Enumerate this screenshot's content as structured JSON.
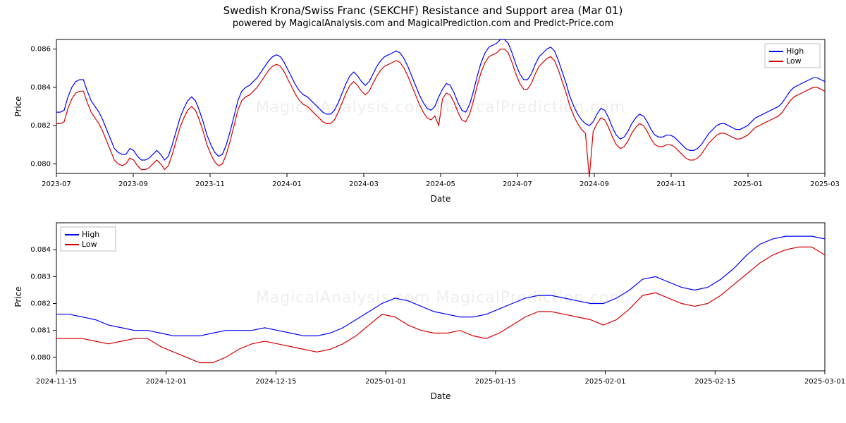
{
  "title": "Swedish Krona/Swiss Franc (SEKCHF) Resistance and Support area (Mar 01)",
  "subtitle": "powered by MagicalAnalysis.com and MagicalPrediction.com and Predict-Price.com",
  "watermark_text": "MagicalAnalysis.com          MagicalPrediction.com",
  "colors": {
    "high": "#0000ff",
    "low": "#d60000",
    "axis": "#000000",
    "background": "#ffffff",
    "legend_border": "#bfbfbf"
  },
  "legend": {
    "high": "High",
    "low": "Low"
  },
  "top_chart": {
    "type": "line",
    "x_label": "Date",
    "y_label": "Price",
    "label_fontsize": 12,
    "tick_fontsize": 10,
    "line_width": 1.2,
    "ylim": [
      0.0795,
      0.0865
    ],
    "yticks": [
      0.08,
      0.082,
      0.084,
      0.086
    ],
    "ytick_labels": [
      "0.080",
      "0.082",
      "0.084",
      "0.086"
    ],
    "xtick_labels": [
      "2023-07",
      "2023-09",
      "2023-11",
      "2024-01",
      "2024-03",
      "2024-05",
      "2024-07",
      "2024-09",
      "2024-11",
      "2025-01",
      "2025-03"
    ],
    "n_points": 200,
    "high": [
      0.0827,
      0.0827,
      0.0828,
      0.0835,
      0.084,
      0.0843,
      0.0844,
      0.0844,
      0.0838,
      0.0833,
      0.083,
      0.0827,
      0.0823,
      0.0818,
      0.0813,
      0.0808,
      0.0806,
      0.0805,
      0.0805,
      0.0808,
      0.0807,
      0.0804,
      0.0802,
      0.0802,
      0.0803,
      0.0805,
      0.0807,
      0.0805,
      0.0802,
      0.0804,
      0.081,
      0.0817,
      0.0824,
      0.0829,
      0.0833,
      0.0835,
      0.0833,
      0.0828,
      0.0822,
      0.0815,
      0.081,
      0.0806,
      0.0804,
      0.0805,
      0.081,
      0.0817,
      0.0825,
      0.0833,
      0.0838,
      0.084,
      0.0841,
      0.0843,
      0.0845,
      0.0848,
      0.0851,
      0.0854,
      0.0856,
      0.0857,
      0.0856,
      0.0853,
      0.0849,
      0.0845,
      0.0841,
      0.0838,
      0.0836,
      0.0835,
      0.0833,
      0.0831,
      0.0829,
      0.0827,
      0.0826,
      0.0826,
      0.0828,
      0.0832,
      0.0837,
      0.0842,
      0.0846,
      0.0848,
      0.0846,
      0.0843,
      0.0841,
      0.0843,
      0.0847,
      0.0851,
      0.0854,
      0.0856,
      0.0857,
      0.0858,
      0.0859,
      0.0858,
      0.0855,
      0.0851,
      0.0846,
      0.0841,
      0.0836,
      0.0832,
      0.0829,
      0.0828,
      0.083,
      0.0835,
      0.0839,
      0.0842,
      0.0841,
      0.0837,
      0.0832,
      0.0828,
      0.0827,
      0.0831,
      0.0838,
      0.0846,
      0.0853,
      0.0858,
      0.0861,
      0.0862,
      0.0863,
      0.0865,
      0.0865,
      0.0863,
      0.0858,
      0.0852,
      0.0847,
      0.0844,
      0.0844,
      0.0847,
      0.0852,
      0.0856,
      0.0858,
      0.086,
      0.0861,
      0.0859,
      0.0854,
      0.0848,
      0.0842,
      0.0835,
      0.083,
      0.0826,
      0.0823,
      0.0821,
      0.082,
      0.0822,
      0.0826,
      0.0829,
      0.0828,
      0.0824,
      0.0819,
      0.0815,
      0.0813,
      0.0814,
      0.0817,
      0.0821,
      0.0824,
      0.0826,
      0.0825,
      0.0822,
      0.0818,
      0.0815,
      0.0814,
      0.0814,
      0.0815,
      0.0815,
      0.0814,
      0.0812,
      0.081,
      0.0808,
      0.0807,
      0.0807,
      0.0808,
      0.081,
      0.0813,
      0.0816,
      0.0818,
      0.082,
      0.0821,
      0.0821,
      0.082,
      0.0819,
      0.0818,
      0.0818,
      0.0819,
      0.082,
      0.0822,
      0.0824,
      0.0825,
      0.0826,
      0.0827,
      0.0828,
      0.0829,
      0.083,
      0.0832,
      0.0835,
      0.0838,
      0.084,
      0.0841,
      0.0842,
      0.0843,
      0.0844,
      0.0845,
      0.0845,
      0.0844,
      0.0843
    ],
    "low": [
      0.0821,
      0.0821,
      0.0822,
      0.0829,
      0.0834,
      0.0837,
      0.0838,
      0.0838,
      0.0832,
      0.0827,
      0.0824,
      0.0821,
      0.0817,
      0.0812,
      0.0807,
      0.0802,
      0.08,
      0.0799,
      0.08,
      0.0803,
      0.0802,
      0.0799,
      0.0797,
      0.0797,
      0.0798,
      0.08,
      0.0802,
      0.08,
      0.0797,
      0.0799,
      0.0805,
      0.0812,
      0.0819,
      0.0824,
      0.0828,
      0.083,
      0.0828,
      0.0823,
      0.0817,
      0.081,
      0.0805,
      0.0801,
      0.0799,
      0.08,
      0.0805,
      0.0812,
      0.082,
      0.0828,
      0.0833,
      0.0835,
      0.0836,
      0.0838,
      0.084,
      0.0843,
      0.0846,
      0.0849,
      0.0851,
      0.0852,
      0.0851,
      0.0848,
      0.0844,
      0.084,
      0.0836,
      0.0833,
      0.0831,
      0.083,
      0.0828,
      0.0826,
      0.0824,
      0.0822,
      0.0821,
      0.0821,
      0.0823,
      0.0827,
      0.0832,
      0.0837,
      0.0841,
      0.0843,
      0.0841,
      0.0838,
      0.0836,
      0.0838,
      0.0842,
      0.0846,
      0.0849,
      0.0851,
      0.0852,
      0.0853,
      0.0854,
      0.0853,
      0.085,
      0.0846,
      0.0841,
      0.0836,
      0.0831,
      0.0827,
      0.0824,
      0.0823,
      0.0825,
      0.082,
      0.0834,
      0.0837,
      0.0836,
      0.0832,
      0.0827,
      0.0823,
      0.0822,
      0.0826,
      0.0833,
      0.0841,
      0.0848,
      0.0853,
      0.0856,
      0.0857,
      0.0858,
      0.086,
      0.086,
      0.0858,
      0.0853,
      0.0847,
      0.0842,
      0.0839,
      0.0839,
      0.0842,
      0.0847,
      0.0851,
      0.0853,
      0.0855,
      0.0856,
      0.0854,
      0.0849,
      0.0843,
      0.0837,
      0.083,
      0.0825,
      0.0821,
      0.0818,
      0.0816,
      0.0793,
      0.0817,
      0.0821,
      0.0824,
      0.0823,
      0.0819,
      0.0814,
      0.081,
      0.0808,
      0.0809,
      0.0812,
      0.0816,
      0.0819,
      0.0821,
      0.082,
      0.0817,
      0.0813,
      0.081,
      0.0809,
      0.0809,
      0.081,
      0.081,
      0.0809,
      0.0807,
      0.0805,
      0.0803,
      0.0802,
      0.0802,
      0.0803,
      0.0805,
      0.0808,
      0.0811,
      0.0813,
      0.0815,
      0.0816,
      0.0816,
      0.0815,
      0.0814,
      0.0813,
      0.0813,
      0.0814,
      0.0815,
      0.0817,
      0.0819,
      0.082,
      0.0821,
      0.0822,
      0.0823,
      0.0824,
      0.0825,
      0.0827,
      0.083,
      0.0833,
      0.0835,
      0.0836,
      0.0837,
      0.0838,
      0.0839,
      0.084,
      0.084,
      0.0839,
      0.0838
    ],
    "legend_position": "top-right"
  },
  "bottom_chart": {
    "type": "line",
    "x_label": "Date",
    "y_label": "Price",
    "label_fontsize": 12,
    "tick_fontsize": 10,
    "line_width": 1.2,
    "ylim": [
      0.0795,
      0.085
    ],
    "yticks": [
      0.08,
      0.081,
      0.082,
      0.083,
      0.084
    ],
    "ytick_labels": [
      "0.080",
      "0.081",
      "0.082",
      "0.083",
      "0.084"
    ],
    "xtick_labels": [
      "2024-11-15",
      "2024-12-01",
      "2024-12-15",
      "2025-01-01",
      "2025-01-15",
      "2025-02-01",
      "2025-02-15",
      "2025-03-01"
    ],
    "n_points": 60,
    "high": [
      0.0816,
      0.0816,
      0.0815,
      0.0814,
      0.0812,
      0.0811,
      0.081,
      0.081,
      0.0809,
      0.0808,
      0.0808,
      0.0808,
      0.0809,
      0.081,
      0.081,
      0.081,
      0.0811,
      0.081,
      0.0809,
      0.0808,
      0.0808,
      0.0809,
      0.0811,
      0.0814,
      0.0817,
      0.082,
      0.0822,
      0.0821,
      0.0819,
      0.0817,
      0.0816,
      0.0815,
      0.0815,
      0.0816,
      0.0818,
      0.082,
      0.0822,
      0.0823,
      0.0823,
      0.0822,
      0.0821,
      0.082,
      0.082,
      0.0822,
      0.0825,
      0.0829,
      0.083,
      0.0828,
      0.0826,
      0.0825,
      0.0826,
      0.0829,
      0.0833,
      0.0838,
      0.0842,
      0.0844,
      0.0845,
      0.0845,
      0.0845,
      0.0844
    ],
    "low": [
      0.0807,
      0.0807,
      0.0807,
      0.0806,
      0.0805,
      0.0806,
      0.0807,
      0.0807,
      0.0804,
      0.0802,
      0.08,
      0.0798,
      0.0798,
      0.08,
      0.0803,
      0.0805,
      0.0806,
      0.0805,
      0.0804,
      0.0803,
      0.0802,
      0.0803,
      0.0805,
      0.0808,
      0.0812,
      0.0816,
      0.0815,
      0.0812,
      0.081,
      0.0809,
      0.0809,
      0.081,
      0.0808,
      0.0807,
      0.0809,
      0.0812,
      0.0815,
      0.0817,
      0.0817,
      0.0816,
      0.0815,
      0.0814,
      0.0812,
      0.0814,
      0.0818,
      0.0823,
      0.0824,
      0.0822,
      0.082,
      0.0819,
      0.082,
      0.0823,
      0.0827,
      0.0831,
      0.0835,
      0.0838,
      0.084,
      0.0841,
      0.0841,
      0.0838
    ],
    "legend_position": "top-left"
  }
}
